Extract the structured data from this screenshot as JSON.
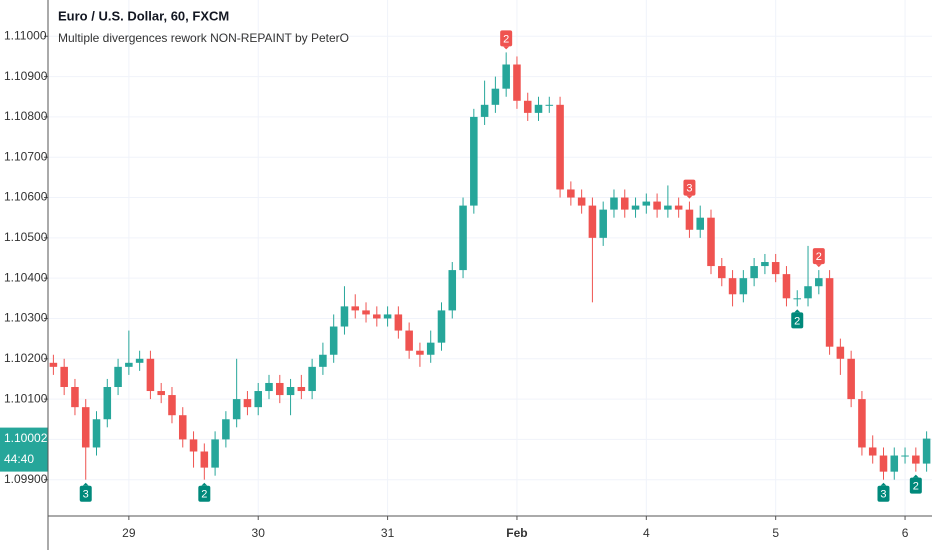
{
  "chart_data": {
    "type": "candlestick",
    "title": "Euro / U.S. Dollar, 60, FXCM",
    "subtitle": "Multiple divergences rework NON-REPAINT by PeterO",
    "up_color": "#26a69a",
    "down_color": "#ef5350",
    "grid": true,
    "ylim": [
      1.0981,
      1.1109
    ],
    "yticks": [
      {
        "value": 1.099,
        "label": "1.09900"
      },
      {
        "value": 1.1,
        "label": "1.10000"
      },
      {
        "value": 1.101,
        "label": "1.10100"
      },
      {
        "value": 1.102,
        "label": "1.10200"
      },
      {
        "value": 1.103,
        "label": "1.10300"
      },
      {
        "value": 1.104,
        "label": "1.10400"
      },
      {
        "value": 1.105,
        "label": "1.10500"
      },
      {
        "value": 1.106,
        "label": "1.10600"
      },
      {
        "value": 1.107,
        "label": "1.10700"
      },
      {
        "value": 1.108,
        "label": "1.10800"
      },
      {
        "value": 1.109,
        "label": "1.10900"
      },
      {
        "value": 1.11,
        "label": "1.11000"
      }
    ],
    "xlim": [
      -0.5,
      81.5
    ],
    "xticks": [
      {
        "value": 7,
        "label": "29"
      },
      {
        "value": 19,
        "label": "30"
      },
      {
        "value": 31,
        "label": "31"
      },
      {
        "value": 43,
        "label": "Feb",
        "bold": true
      },
      {
        "value": 55,
        "label": "4"
      },
      {
        "value": 67,
        "label": "5"
      },
      {
        "value": 79,
        "label": "6"
      }
    ],
    "open": [
      1.1019,
      1.1018,
      1.1013,
      1.1008,
      1.0998,
      1.1005,
      1.1013,
      1.1018,
      1.1019,
      1.102,
      1.1012,
      1.1011,
      1.1006,
      1.1,
      1.0997,
      1.0993,
      1.1,
      1.1005,
      1.101,
      1.1008,
      1.1012,
      1.1014,
      1.1011,
      1.1013,
      1.1012,
      1.1018,
      1.1021,
      1.1028,
      1.1033,
      1.1032,
      1.1031,
      1.103,
      1.1031,
      1.1027,
      1.1022,
      1.1021,
      1.1024,
      1.1032,
      1.1042,
      1.1058,
      1.108,
      1.1083,
      1.1087,
      1.1093,
      1.1084,
      1.1081,
      1.1083,
      1.1083,
      1.1062,
      1.106,
      1.1058,
      1.105,
      1.1057,
      1.106,
      1.1057,
      1.1058,
      1.1059,
      1.1057,
      1.1058,
      1.1057,
      1.1052,
      1.1055,
      1.1043,
      1.104,
      1.1036,
      1.104,
      1.1043,
      1.1044,
      1.1041,
      1.1035,
      1.1035,
      1.1038,
      1.104,
      1.1023,
      1.102,
      1.101,
      1.0998,
      1.0996,
      1.0992,
      1.0996,
      1.0996,
      1.0994
    ],
    "high": [
      1.1021,
      1.102,
      1.1015,
      1.101,
      1.1007,
      1.1015,
      1.102,
      1.1027,
      1.1022,
      1.1022,
      1.1014,
      1.1013,
      1.1008,
      1.1002,
      1.0999,
      1.1002,
      1.1007,
      1.102,
      1.1012,
      1.1014,
      1.1016,
      1.1016,
      1.1015,
      1.1016,
      1.102,
      1.1024,
      1.1031,
      1.1038,
      1.1036,
      1.1034,
      1.1033,
      1.1033,
      1.1033,
      1.1029,
      1.1024,
      1.1027,
      1.1034,
      1.1044,
      1.106,
      1.1082,
      1.1089,
      1.109,
      1.1096,
      1.1095,
      1.1086,
      1.1085,
      1.1085,
      1.1085,
      1.1064,
      1.1062,
      1.106,
      1.1059,
      1.1062,
      1.1062,
      1.106,
      1.1061,
      1.1061,
      1.1063,
      1.106,
      1.1059,
      1.1058,
      1.1057,
      1.1045,
      1.1042,
      1.1042,
      1.1045,
      1.1046,
      1.1046,
      1.1043,
      1.1037,
      1.1048,
      1.1042,
      1.1042,
      1.1025,
      1.1022,
      1.1012,
      1.1001,
      1.0998,
      1.0998,
      1.0998,
      1.0998,
      1.1002
    ],
    "low": [
      1.1016,
      1.1011,
      1.1006,
      1.099,
      1.0996,
      1.1003,
      1.1011,
      1.1016,
      1.1017,
      1.101,
      1.1009,
      1.1004,
      1.0998,
      1.0993,
      1.099,
      1.0991,
      1.0998,
      1.1003,
      1.1006,
      1.1006,
      1.101,
      1.1009,
      1.1006,
      1.101,
      1.101,
      1.1016,
      1.1019,
      1.1026,
      1.103,
      1.1029,
      1.1028,
      1.1028,
      1.1025,
      1.102,
      1.1018,
      1.1019,
      1.1022,
      1.103,
      1.104,
      1.1056,
      1.1078,
      1.1081,
      1.1085,
      1.1082,
      1.1079,
      1.1079,
      1.1081,
      1.106,
      1.1058,
      1.1056,
      1.1034,
      1.1048,
      1.1055,
      1.1055,
      1.1055,
      1.1056,
      1.1055,
      1.1055,
      1.1055,
      1.105,
      1.105,
      1.1041,
      1.1038,
      1.1033,
      1.1034,
      1.1038,
      1.1041,
      1.1039,
      1.1033,
      1.1033,
      1.1033,
      1.1036,
      1.1021,
      1.1016,
      1.1008,
      1.0996,
      1.0994,
      1.099,
      1.099,
      1.0994,
      1.0992,
      1.0992
    ],
    "close": [
      1.1018,
      1.1013,
      1.1008,
      1.0998,
      1.1005,
      1.1013,
      1.1018,
      1.1019,
      1.102,
      1.1012,
      1.1011,
      1.1006,
      1.1,
      1.0997,
      1.0993,
      1.1,
      1.1005,
      1.101,
      1.1008,
      1.1012,
      1.1014,
      1.1011,
      1.1013,
      1.1012,
      1.1018,
      1.1021,
      1.1028,
      1.1033,
      1.1032,
      1.1031,
      1.103,
      1.1031,
      1.1027,
      1.1022,
      1.1021,
      1.1024,
      1.1032,
      1.1042,
      1.1058,
      1.108,
      1.1083,
      1.1087,
      1.1093,
      1.1084,
      1.1081,
      1.1083,
      1.1083,
      1.1062,
      1.106,
      1.1058,
      1.105,
      1.1057,
      1.106,
      1.1057,
      1.1058,
      1.1059,
      1.1057,
      1.1058,
      1.1057,
      1.1052,
      1.1055,
      1.1043,
      1.104,
      1.1036,
      1.104,
      1.1043,
      1.1044,
      1.1041,
      1.1035,
      1.1035,
      1.1038,
      1.104,
      1.1023,
      1.102,
      1.101,
      1.0998,
      1.0996,
      1.0992,
      1.0996,
      1.0996,
      1.0994,
      1.10002
    ],
    "annotations": [
      {
        "label": "3",
        "x": 3,
        "position": "below",
        "color": "#00897b"
      },
      {
        "label": "2",
        "x": 14,
        "position": "below",
        "color": "#00897b"
      },
      {
        "label": "2",
        "x": 42,
        "position": "above",
        "color": "#ef5350"
      },
      {
        "label": "3",
        "x": 59,
        "position": "above",
        "color": "#ef5350"
      },
      {
        "label": "2",
        "x": 69,
        "position": "below",
        "color": "#00897b"
      },
      {
        "label": "2",
        "x": 71,
        "position": "above",
        "color": "#ef5350"
      },
      {
        "label": "3",
        "x": 77,
        "position": "below",
        "color": "#00897b"
      },
      {
        "label": "2",
        "x": 80,
        "position": "below",
        "color": "#00897b"
      }
    ],
    "last_price": 1.10002,
    "last_price_color": "#26a69a",
    "countdown": "44:40"
  }
}
